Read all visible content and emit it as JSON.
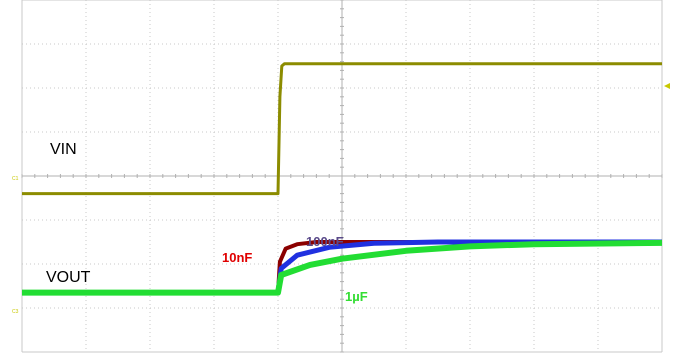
{
  "chart_data": {
    "type": "line",
    "title": "",
    "xlabel": "",
    "ylabel": "",
    "grid": true,
    "grid_divisions": {
      "x": 10,
      "y": 8
    },
    "x_range": [
      0,
      10
    ],
    "y_range": [
      0,
      8
    ],
    "channel_labels": [
      "VIN",
      "VOUT"
    ],
    "channel_markers": [
      "C1",
      "C3"
    ],
    "annotations": [
      {
        "text": "10nF",
        "color": "#e00000"
      },
      {
        "text": "100nF",
        "color": "#5a4a8a"
      },
      {
        "text": "1µF",
        "color": "#33dd33"
      }
    ],
    "series": [
      {
        "channel": "VIN",
        "color": "#8c8c00",
        "x": [
          0,
          4.0,
          4.03,
          4.06,
          4.1,
          10
        ],
        "y": [
          3.6,
          3.6,
          5.8,
          6.5,
          6.55,
          6.55
        ]
      },
      {
        "channel": "VOUT",
        "capacitor": "10nF",
        "color": "#8b0000",
        "x": [
          0,
          4.0,
          4.03,
          4.12,
          4.3,
          4.6,
          10
        ],
        "y": [
          1.35,
          1.35,
          2.05,
          2.35,
          2.45,
          2.5,
          2.5
        ]
      },
      {
        "channel": "VOUT",
        "capacitor": "100nF",
        "color": "#2030e0",
        "x": [
          0,
          4.0,
          4.05,
          4.3,
          4.8,
          5.5,
          6.5,
          10
        ],
        "y": [
          1.35,
          1.35,
          1.9,
          2.2,
          2.38,
          2.47,
          2.5,
          2.5
        ]
      },
      {
        "channel": "VOUT",
        "capacitor": "1µF",
        "color": "#22dd33",
        "x": [
          0,
          4.0,
          4.05,
          4.5,
          5.0,
          6.0,
          7.0,
          8.0,
          10
        ],
        "y": [
          1.35,
          1.35,
          1.75,
          1.98,
          2.12,
          2.3,
          2.4,
          2.45,
          2.48
        ]
      }
    ]
  }
}
